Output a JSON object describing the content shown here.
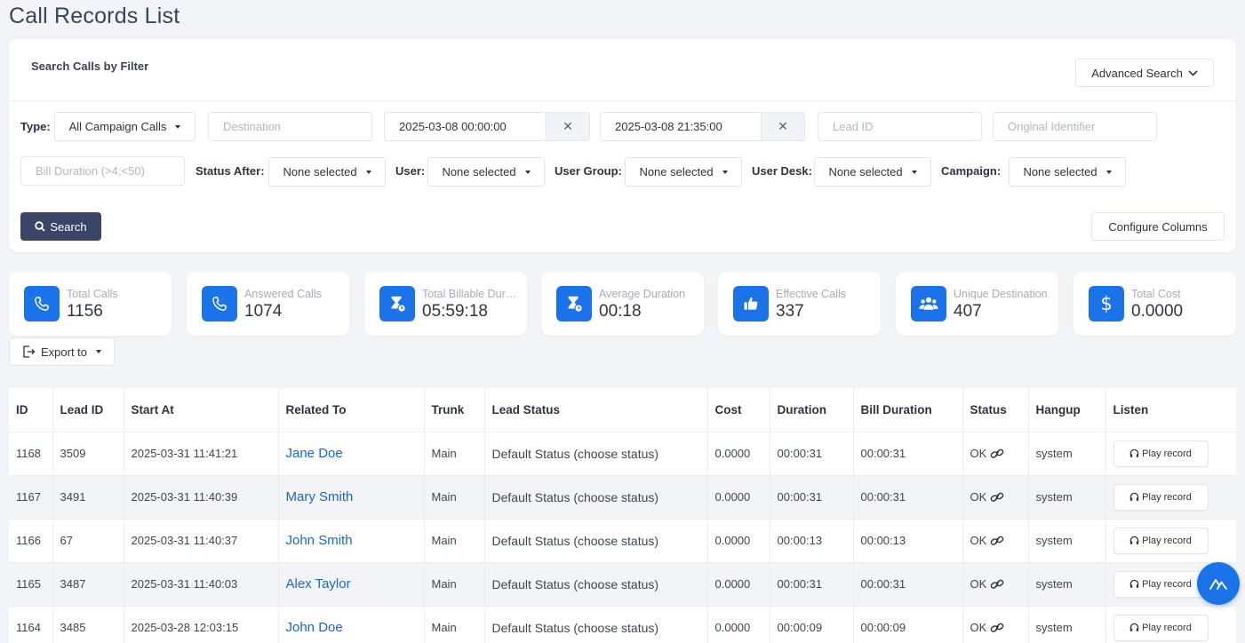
{
  "page": {
    "title": "Call Records List"
  },
  "filter": {
    "title": "Search Calls by Filter",
    "advanced_label": "Advanced Search",
    "type_label": "Type:",
    "type_value": "All Campaign Calls",
    "destination_placeholder": "Destination",
    "date_from": "2025-03-08 00:00:00",
    "date_to": "2025-03-08 21:35:00",
    "clear_glyph": "✕",
    "lead_id_placeholder": "Lead ID",
    "original_identifier_placeholder": "Original Identifier",
    "bill_duration_placeholder": "Bill Duration (>4;<50)",
    "status_after_label": "Status After:",
    "user_label": "User:",
    "user_group_label": "User Group:",
    "user_desk_label": "User Desk:",
    "campaign_label": "Campaign:",
    "none_selected": "None selected",
    "search_label": "Search",
    "configure_label": "Configure Columns"
  },
  "stats": [
    {
      "label": "Total Calls",
      "value": "1156",
      "icon": "phone-icon"
    },
    {
      "label": "Answered Calls",
      "value": "1074",
      "icon": "phone-icon"
    },
    {
      "label": "Total Billable Duration",
      "value": "05:59:18",
      "icon": "hourglass-clock-icon"
    },
    {
      "label": "Average Duration",
      "value": "00:18",
      "icon": "hourglass-clock-icon"
    },
    {
      "label": "Effective Calls",
      "value": "337",
      "icon": "thumbs-up-icon"
    },
    {
      "label": "Unique Destination",
      "value": "407",
      "icon": "users-icon"
    },
    {
      "label": "Total Cost",
      "value": "0.0000",
      "icon": "dollar-icon"
    }
  ],
  "export": {
    "label": "Export to"
  },
  "table": {
    "headers": [
      "ID",
      "Lead ID",
      "Start At",
      "Related To",
      "Trunk",
      "Lead Status",
      "Cost",
      "Duration",
      "Bill Duration",
      "Status",
      "Hangup",
      "Listen"
    ],
    "play_label": "Play record",
    "rows": [
      {
        "id": "1168",
        "lead_id": "3509",
        "start_at": "2025-03-31 11:41:21",
        "related_to": "Jane Doe",
        "trunk": "Main",
        "lead_status": "Default Status (choose status)",
        "cost": "0.0000",
        "duration": "00:00:31",
        "bill_duration": "00:00:31",
        "status": "OK",
        "hangup": "system"
      },
      {
        "id": "1167",
        "lead_id": "3491",
        "start_at": "2025-03-31 11:40:39",
        "related_to": "Mary Smith",
        "trunk": "Main",
        "lead_status": "Default Status (choose status)",
        "cost": "0.0000",
        "duration": "00:00:31",
        "bill_duration": "00:00:31",
        "status": "OK",
        "hangup": "system"
      },
      {
        "id": "1166",
        "lead_id": "67",
        "start_at": "2025-03-31 11:40:37",
        "related_to": "John Smith",
        "trunk": "Main",
        "lead_status": "Default Status (choose status)",
        "cost": "0.0000",
        "duration": "00:00:13",
        "bill_duration": "00:00:13",
        "status": "OK",
        "hangup": "system"
      },
      {
        "id": "1165",
        "lead_id": "3487",
        "start_at": "2025-03-31 11:40:03",
        "related_to": "Alex Taylor",
        "trunk": "Main",
        "lead_status": "Default Status (choose status)",
        "cost": "0.0000",
        "duration": "00:00:31",
        "bill_duration": "00:00:31",
        "status": "OK",
        "hangup": "system"
      },
      {
        "id": "1164",
        "lead_id": "3485",
        "start_at": "2025-03-28 12:03:15",
        "related_to": "John Doe",
        "trunk": "Main",
        "lead_status": "Default Status (choose status)",
        "cost": "0.0000",
        "duration": "00:00:09",
        "bill_duration": "00:00:09",
        "status": "OK",
        "hangup": "system"
      }
    ]
  },
  "colors": {
    "accent": "#1a73e8",
    "search_button": "#3a4466",
    "link": "#1a66cc"
  }
}
